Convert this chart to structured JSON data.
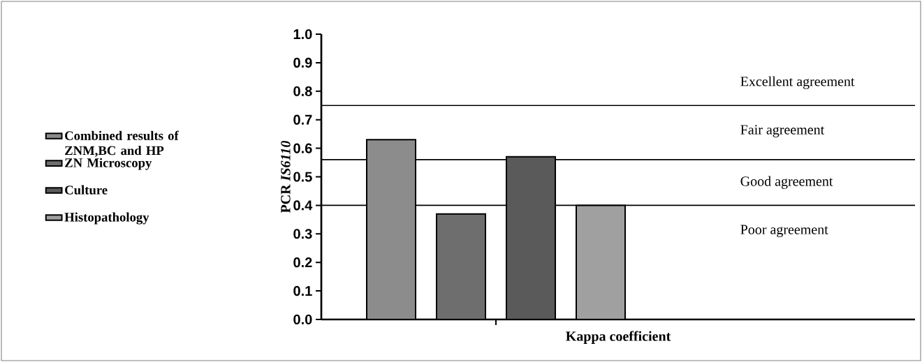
{
  "chart_data": {
    "type": "bar",
    "xlabel": "Kappa coefficient",
    "ylabel": "PCR *IS6110*",
    "categories": [
      null
    ],
    "series": [
      {
        "name": "Combined results of ZNM,BC and HP",
        "color": "#8c8c8c",
        "values": [
          0.63
        ]
      },
      {
        "name": "ZN Microscopy",
        "color": "#6e6e6e",
        "values": [
          0.37
        ]
      },
      {
        "name": "Culture",
        "color": "#5a5a5a",
        "values": [
          0.57
        ]
      },
      {
        "name": "Histopathology",
        "color": "#a0a0a0",
        "values": [
          0.4
        ]
      }
    ],
    "ylim": [
      0,
      1.0
    ],
    "yticks": [
      {
        "value": 0,
        "label": "0.0"
      },
      0.1,
      0.2,
      0.3,
      0.4,
      0.5,
      0.6,
      0.7,
      0.8,
      0.9,
      {
        "value": 1.0,
        "label": "1.0"
      }
    ],
    "ref_lines": [
      {
        "axis": "y",
        "value": 0.75
      },
      {
        "axis": "y",
        "value": 0.56
      },
      {
        "axis": "y",
        "value": 0.4
      }
    ],
    "annotations": [
      "Excellent agreement",
      "Fair agreement",
      "Good agreement",
      "Poor agreement"
    ],
    "legend": "left"
  }
}
